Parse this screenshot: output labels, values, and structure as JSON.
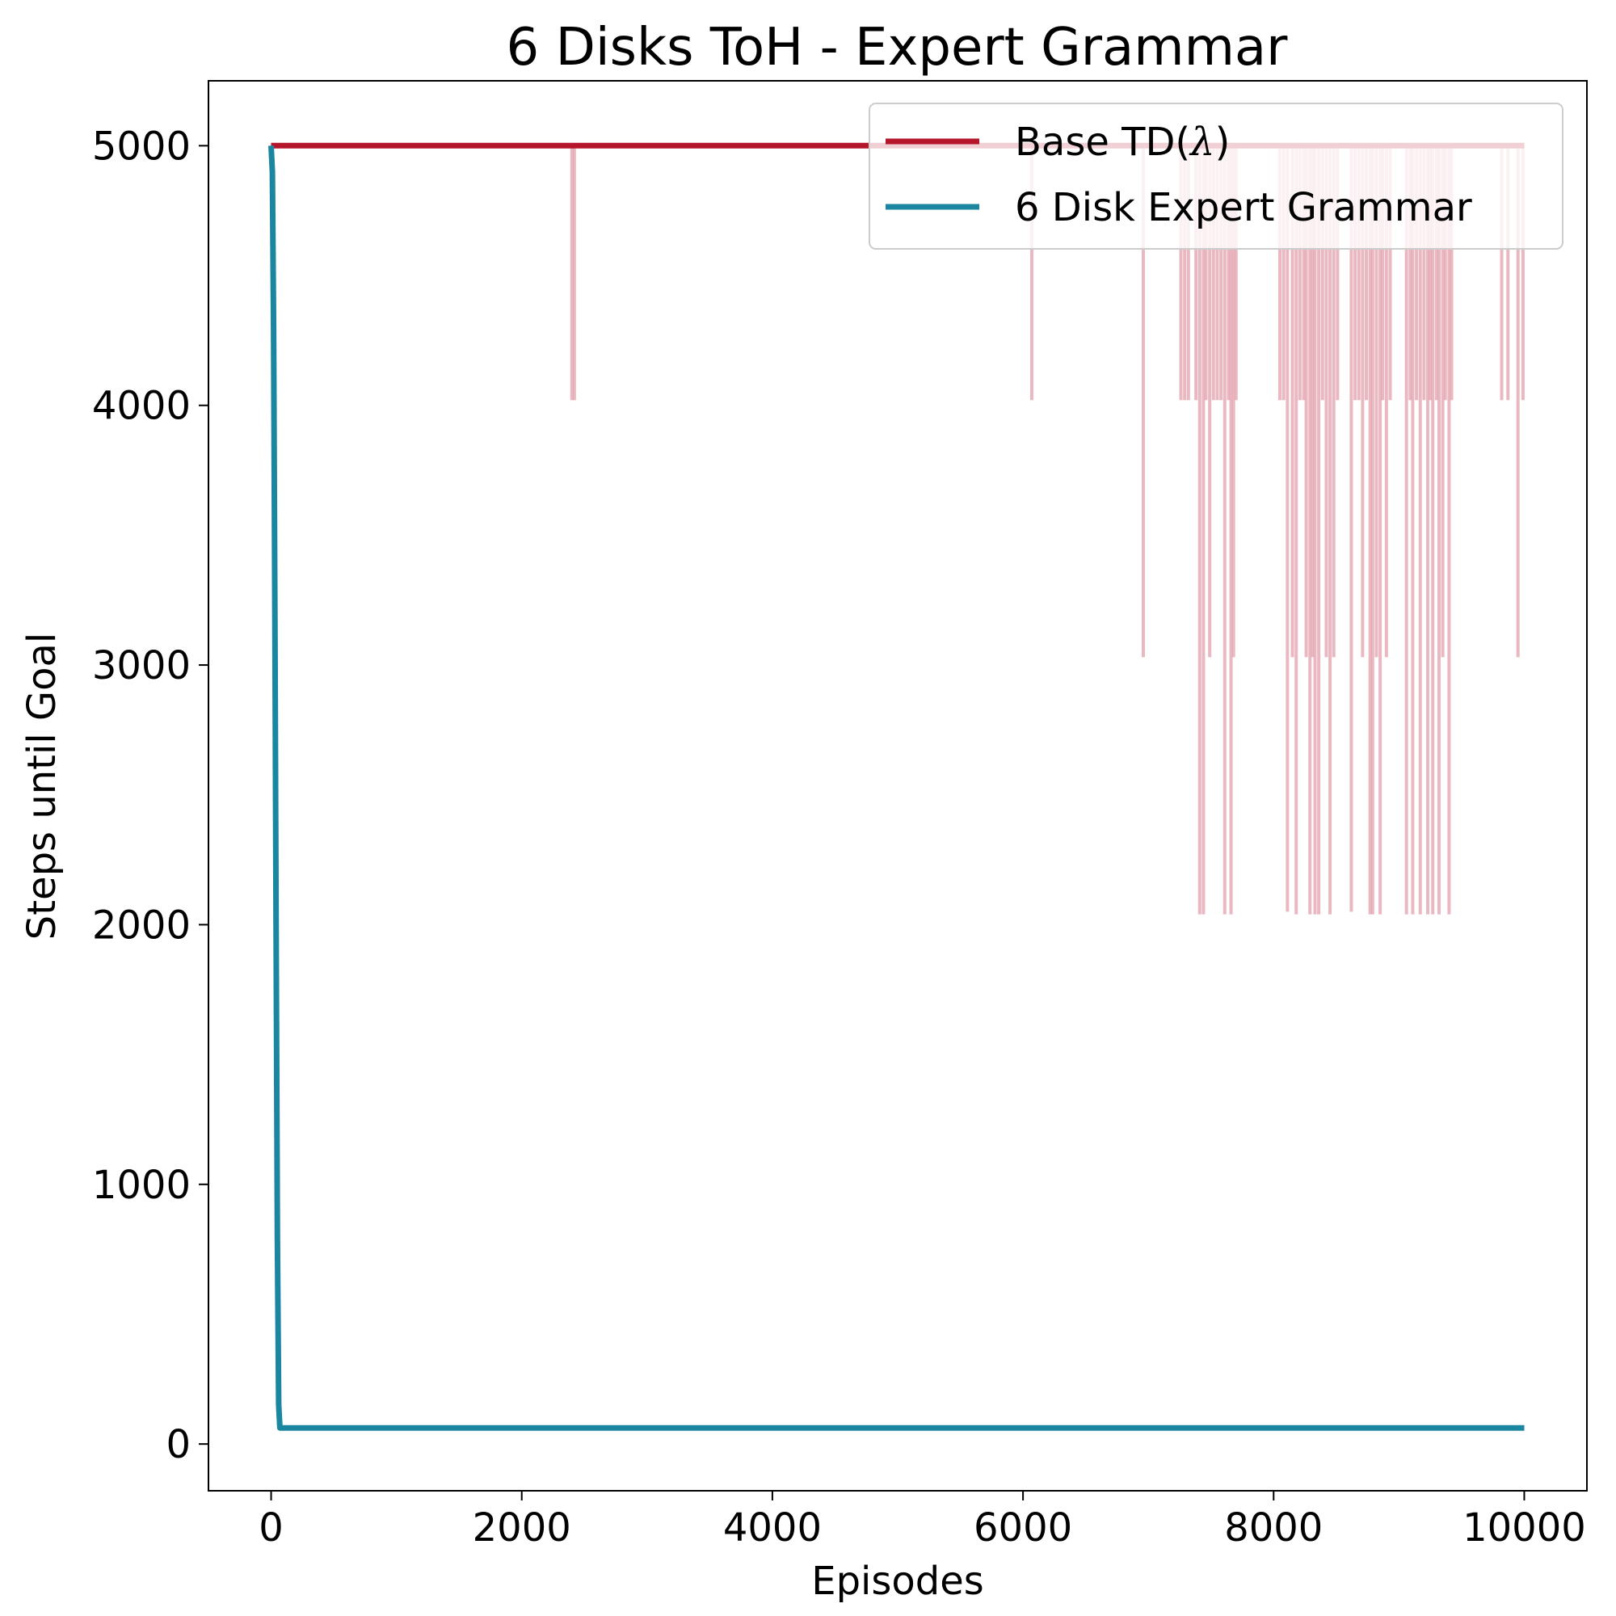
{
  "chart_data": {
    "type": "line",
    "title": "6 Disks ToH - Expert Grammar",
    "xlabel": "Episodes",
    "ylabel": "Steps until Goal",
    "xlim": [
      -500,
      10500
    ],
    "ylim": [
      -180,
      5250
    ],
    "xticks": [
      0,
      2000,
      4000,
      6000,
      8000,
      10000
    ],
    "yticks": [
      0,
      1000,
      2000,
      3000,
      4000,
      5000
    ],
    "xtick_labels": [
      "0",
      "2000",
      "4000",
      "6000",
      "8000",
      "10000"
    ],
    "ytick_labels": [
      "0",
      "1000",
      "2000",
      "3000",
      "4000",
      "5000"
    ],
    "grid": false,
    "legend_position": "top-right",
    "colors": {
      "base": "#b5162b",
      "base_light": "#e3a0ac",
      "expert": "#1a86a0",
      "expert_light": "#b9dbe4"
    },
    "series": [
      {
        "name": "Base TD(λ)",
        "legend_prefix": "Base TD(",
        "legend_symbol": "λ",
        "legend_suffix": ")",
        "x": [
          0,
          10000
        ],
        "y": [
          5000,
          5000
        ],
        "raw_dips": [
          [
            2400,
            4020
          ],
          [
            2420,
            4020
          ],
          [
            6070,
            4020
          ],
          [
            6960,
            3030
          ],
          [
            7260,
            4020
          ],
          [
            7290,
            4020
          ],
          [
            7320,
            4020
          ],
          [
            7380,
            4020
          ],
          [
            7410,
            2040
          ],
          [
            7440,
            2040
          ],
          [
            7460,
            4020
          ],
          [
            7490,
            3030
          ],
          [
            7520,
            4020
          ],
          [
            7550,
            4020
          ],
          [
            7580,
            4020
          ],
          [
            7610,
            2040
          ],
          [
            7640,
            4020
          ],
          [
            7660,
            2040
          ],
          [
            7680,
            3030
          ],
          [
            7700,
            4020
          ],
          [
            8050,
            4020
          ],
          [
            8080,
            4020
          ],
          [
            8110,
            2050
          ],
          [
            8150,
            3030
          ],
          [
            8180,
            2040
          ],
          [
            8210,
            4020
          ],
          [
            8240,
            4020
          ],
          [
            8260,
            3030
          ],
          [
            8290,
            2040
          ],
          [
            8310,
            3030
          ],
          [
            8330,
            2040
          ],
          [
            8360,
            2040
          ],
          [
            8390,
            4020
          ],
          [
            8420,
            3030
          ],
          [
            8450,
            2040
          ],
          [
            8480,
            3030
          ],
          [
            8510,
            4020
          ],
          [
            8620,
            2050
          ],
          [
            8650,
            4020
          ],
          [
            8680,
            4020
          ],
          [
            8710,
            3030
          ],
          [
            8740,
            4020
          ],
          [
            8770,
            2040
          ],
          [
            8790,
            2040
          ],
          [
            8820,
            3030
          ],
          [
            8850,
            2040
          ],
          [
            8870,
            4020
          ],
          [
            8900,
            3030
          ],
          [
            8930,
            4020
          ],
          [
            9060,
            2040
          ],
          [
            9090,
            4020
          ],
          [
            9110,
            2040
          ],
          [
            9140,
            4020
          ],
          [
            9170,
            2040
          ],
          [
            9200,
            4020
          ],
          [
            9230,
            2040
          ],
          [
            9250,
            4020
          ],
          [
            9270,
            2040
          ],
          [
            9300,
            4020
          ],
          [
            9320,
            2040
          ],
          [
            9350,
            3030
          ],
          [
            9370,
            4020
          ],
          [
            9400,
            2040
          ],
          [
            9420,
            4020
          ],
          [
            9820,
            4020
          ],
          [
            9870,
            4020
          ],
          [
            9950,
            3030
          ],
          [
            9990,
            4020
          ]
        ]
      },
      {
        "name": "6 Disk Expert Grammar",
        "x": [
          0,
          10,
          20,
          30,
          40,
          50,
          60,
          70,
          100,
          500,
          1000,
          10000
        ],
        "y": [
          5000,
          4900,
          4300,
          3200,
          2000,
          800,
          150,
          62,
          62,
          62,
          62,
          62
        ]
      }
    ]
  }
}
